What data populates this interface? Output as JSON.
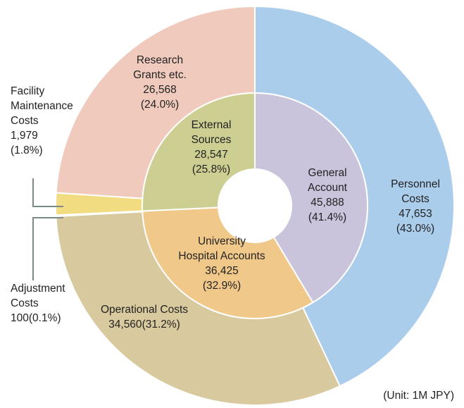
{
  "chart_data": {
    "type": "nested-donut",
    "note": "(Unit: 1M JPY)",
    "rings": [
      {
        "series": [
          {
            "name": "Personnel\nCosts",
            "value": 47653,
            "value_label": "47,653",
            "percent": 43.0,
            "percent_label": "(43.0%)",
            "color": "#abcdec"
          },
          {
            "name": "Operational Costs",
            "value": 34560,
            "value_label": "34,560",
            "percent": 31.2,
            "percent_label": "(31.2%)",
            "color": "#d8c99e"
          },
          {
            "name": "Adjustment\nCosts",
            "value": 100,
            "value_label": "100",
            "percent": 0.1,
            "percent_label": "(0.1%)",
            "color": "#9fd3d9"
          },
          {
            "name": "Facility\nMaintenance\nCosts",
            "value": 1979,
            "value_label": "1,979",
            "percent": 1.8,
            "percent_label": "(1.8%)",
            "color": "#f2dc82"
          },
          {
            "name": "Research\nGrants etc.",
            "value": 26568,
            "value_label": "26,568",
            "percent": 24.0,
            "percent_label": "(24.0%)",
            "color": "#f0cbbd"
          }
        ]
      },
      {
        "series": [
          {
            "name": "General\nAccount",
            "value": 45888,
            "value_label": "45,888",
            "percent": 41.4,
            "percent_label": "(41.4%)",
            "color": "#c9c3db"
          },
          {
            "name": "University\nHospital Accounts",
            "value": 36425,
            "value_label": "36,425",
            "percent": 32.9,
            "percent_label": "(32.9%)",
            "color": "#f0c88a"
          },
          {
            "name": "External\nSources",
            "value": 28547,
            "value_label": "28,547",
            "percent": 25.8,
            "percent_label": "(25.8%)",
            "color": "#cdcf92"
          }
        ]
      }
    ]
  }
}
